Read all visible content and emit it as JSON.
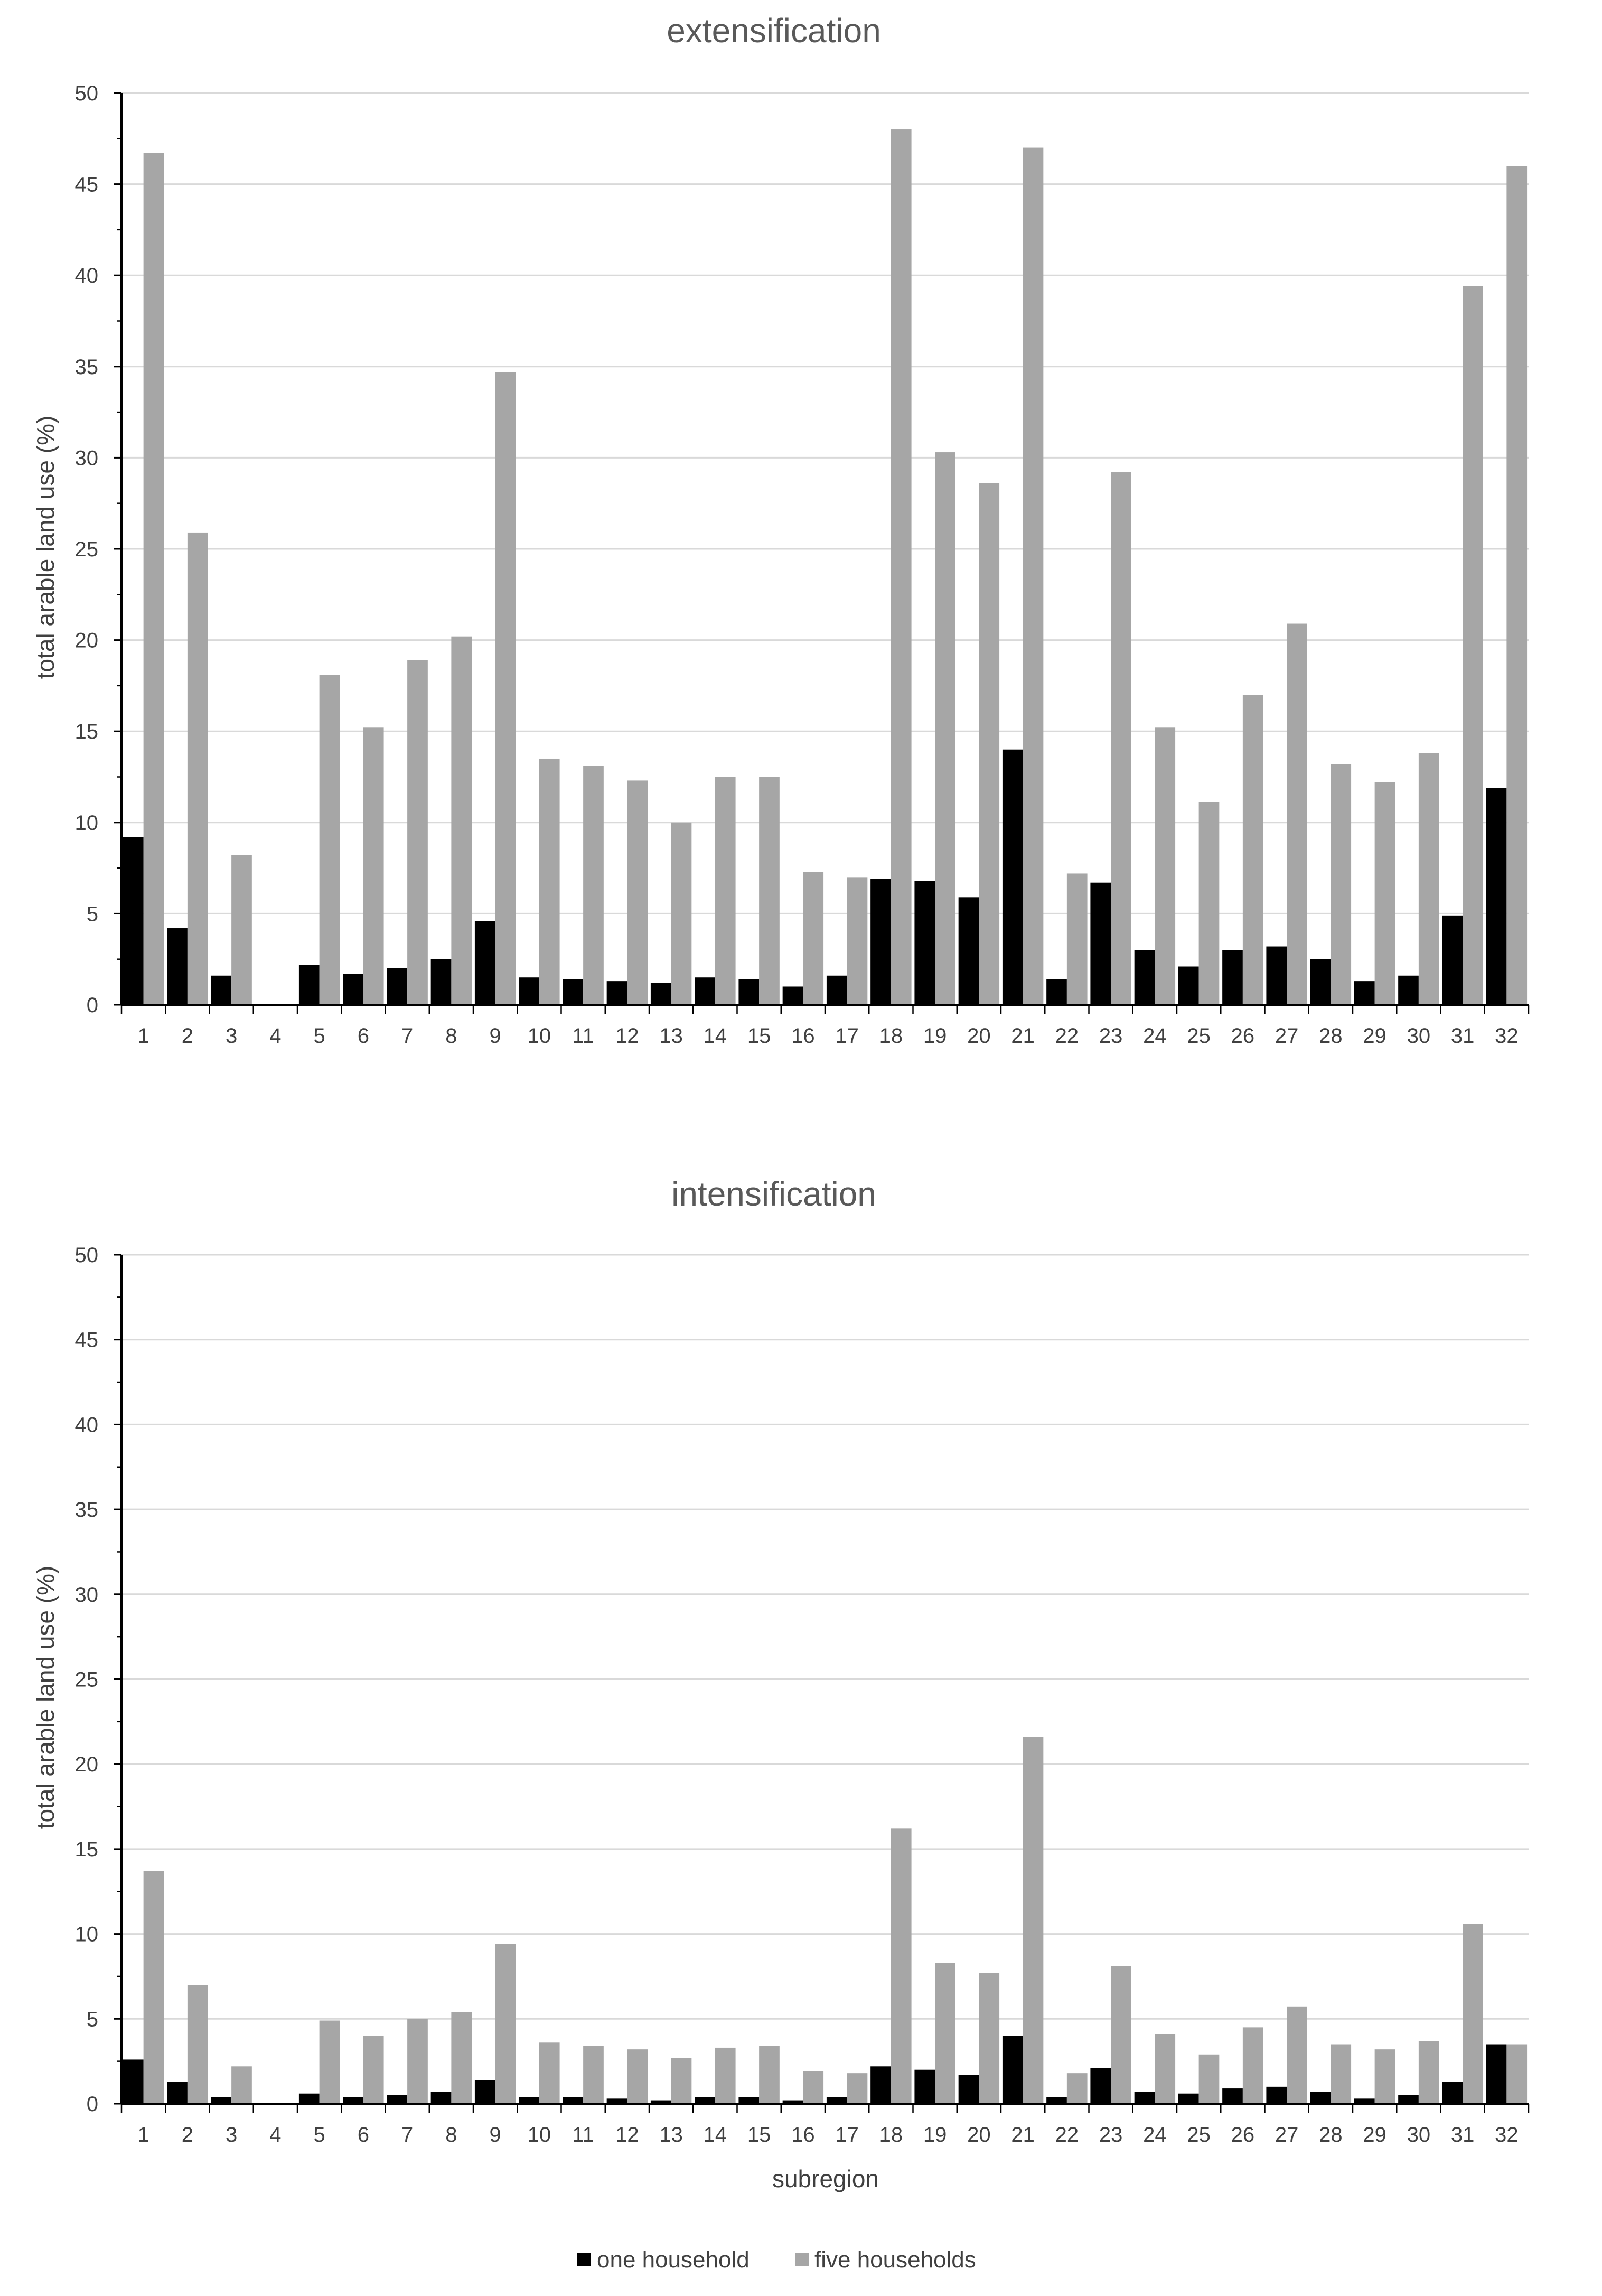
{
  "colors": {
    "one": "#000000",
    "five": "#a6a6a6",
    "grid": "#d9d9d9",
    "axis": "#000000"
  },
  "legend": {
    "placement": "bottom-center",
    "items": [
      {
        "label": "one household",
        "color": "#000000"
      },
      {
        "label": "five households",
        "color": "#a6a6a6"
      }
    ]
  },
  "chart_data": [
    {
      "type": "bar",
      "title": "extensification",
      "xlabel": "",
      "ylabel": "total arable land use (%)",
      "ylim": [
        0,
        50
      ],
      "yticks": [
        "0",
        "5",
        "10",
        "15",
        "20",
        "25",
        "30",
        "35",
        "40",
        "45",
        "50"
      ],
      "grid": true,
      "categories": [
        "1",
        "2",
        "3",
        "4",
        "5",
        "6",
        "7",
        "8",
        "9",
        "10",
        "11",
        "12",
        "13",
        "14",
        "15",
        "16",
        "17",
        "18",
        "19",
        "20",
        "21",
        "22",
        "23",
        "24",
        "25",
        "26",
        "27",
        "28",
        "29",
        "30",
        "31",
        "32"
      ],
      "series": [
        {
          "name": "one household",
          "values": [
            9.2,
            4.2,
            1.6,
            0,
            2.2,
            1.7,
            2.0,
            2.5,
            4.6,
            1.5,
            1.4,
            1.3,
            1.2,
            1.5,
            1.4,
            1.0,
            1.6,
            6.9,
            6.8,
            5.9,
            14.0,
            1.4,
            6.7,
            3.0,
            2.1,
            3.0,
            3.2,
            2.5,
            1.3,
            1.6,
            4.9,
            11.9
          ]
        },
        {
          "name": "five households",
          "values": [
            46.7,
            25.9,
            8.2,
            0,
            18.1,
            15.2,
            18.9,
            20.2,
            34.7,
            13.5,
            13.1,
            12.3,
            10.0,
            12.5,
            12.5,
            7.3,
            7.0,
            48.0,
            30.3,
            28.6,
            47.0,
            7.2,
            29.2,
            15.2,
            11.1,
            17.0,
            20.9,
            13.2,
            12.2,
            13.8,
            39.4,
            46.0
          ]
        }
      ]
    },
    {
      "type": "bar",
      "title": "intensification",
      "xlabel": "subregion",
      "ylabel": "total arable land use (%)",
      "ylim": [
        0,
        50
      ],
      "yticks": [
        "0",
        "5",
        "10",
        "15",
        "20",
        "25",
        "30",
        "35",
        "40",
        "45",
        "50"
      ],
      "grid": true,
      "categories": [
        "1",
        "2",
        "3",
        "4",
        "5",
        "6",
        "7",
        "8",
        "9",
        "10",
        "11",
        "12",
        "13",
        "14",
        "15",
        "16",
        "17",
        "18",
        "19",
        "20",
        "21",
        "22",
        "23",
        "24",
        "25",
        "26",
        "27",
        "28",
        "29",
        "30",
        "31",
        "32"
      ],
      "series": [
        {
          "name": "one household",
          "values": [
            2.6,
            1.3,
            0.4,
            0,
            0.6,
            0.4,
            0.5,
            0.7,
            1.4,
            0.4,
            0.4,
            0.3,
            0.2,
            0.4,
            0.4,
            0.2,
            0.4,
            2.2,
            2.0,
            1.7,
            4.0,
            0.4,
            2.1,
            0.7,
            0.6,
            0.9,
            1.0,
            0.7,
            0.3,
            0.5,
            1.3,
            3.5
          ]
        },
        {
          "name": "five households",
          "values": [
            13.7,
            7.0,
            2.2,
            0,
            4.9,
            4.0,
            5.0,
            5.4,
            9.4,
            3.6,
            3.4,
            3.2,
            2.7,
            3.3,
            3.4,
            1.9,
            1.8,
            16.2,
            8.3,
            7.7,
            21.6,
            1.8,
            8.1,
            4.1,
            2.9,
            4.5,
            5.7,
            3.5,
            3.2,
            3.7,
            10.6,
            3.5
          ]
        }
      ]
    }
  ]
}
